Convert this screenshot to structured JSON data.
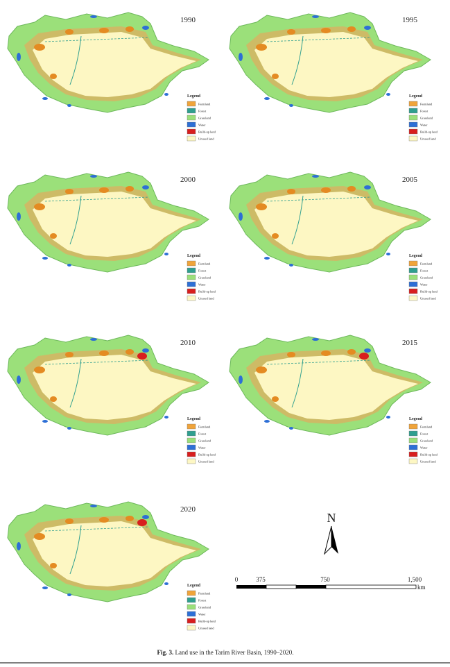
{
  "panels": [
    {
      "year": "1990"
    },
    {
      "year": "1995"
    },
    {
      "year": "2000"
    },
    {
      "year": "2005"
    },
    {
      "year": "2010"
    },
    {
      "year": "2015"
    },
    {
      "year": "2020"
    }
  ],
  "legend": {
    "title": "Legend",
    "items": [
      "Farmland",
      "Forest",
      "Grassland",
      "Water",
      "Build-up land",
      "Unused land"
    ]
  },
  "north": "N",
  "scale": {
    "labels": [
      "0",
      "375",
      "750",
      "1,500"
    ],
    "unit": "km"
  },
  "caption": {
    "label": "Fig. 3.",
    "text": "Land use in the Tarim River Basin, 1990–2020."
  }
}
